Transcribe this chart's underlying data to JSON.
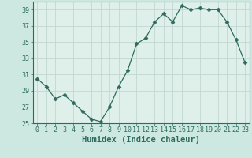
{
  "x": [
    0,
    1,
    2,
    3,
    4,
    5,
    6,
    7,
    8,
    9,
    10,
    11,
    12,
    13,
    14,
    15,
    16,
    17,
    18,
    19,
    20,
    21,
    22,
    23
  ],
  "y": [
    30.5,
    29.5,
    28.0,
    28.5,
    27.5,
    26.5,
    25.5,
    25.2,
    27.0,
    29.5,
    31.5,
    34.8,
    35.5,
    37.5,
    38.5,
    37.5,
    39.5,
    39.0,
    39.2,
    39.0,
    39.0,
    37.5,
    35.3,
    32.5
  ],
  "line_color": "#2e6b5e",
  "marker": "D",
  "marker_size": 2.5,
  "bg_color": "#cce8e0",
  "grid_color": "#c0d8d0",
  "plot_bg_color": "#dff0ea",
  "xlabel": "Humidex (Indice chaleur)",
  "ylabel": "",
  "title": "",
  "ylim": [
    25,
    40
  ],
  "xlim": [
    -0.5,
    23.5
  ],
  "yticks": [
    25,
    27,
    29,
    31,
    33,
    35,
    37,
    39
  ],
  "xticks": [
    0,
    1,
    2,
    3,
    4,
    5,
    6,
    7,
    8,
    9,
    10,
    11,
    12,
    13,
    14,
    15,
    16,
    17,
    18,
    19,
    20,
    21,
    22,
    23
  ],
  "xtick_labels": [
    "0",
    "1",
    "2",
    "3",
    "4",
    "5",
    "6",
    "7",
    "8",
    "9",
    "10",
    "11",
    "12",
    "13",
    "14",
    "15",
    "16",
    "17",
    "18",
    "19",
    "20",
    "21",
    "22",
    "23"
  ],
  "font_color": "#2e6b5e",
  "tick_fontsize": 6,
  "xlabel_fontsize": 7.5
}
